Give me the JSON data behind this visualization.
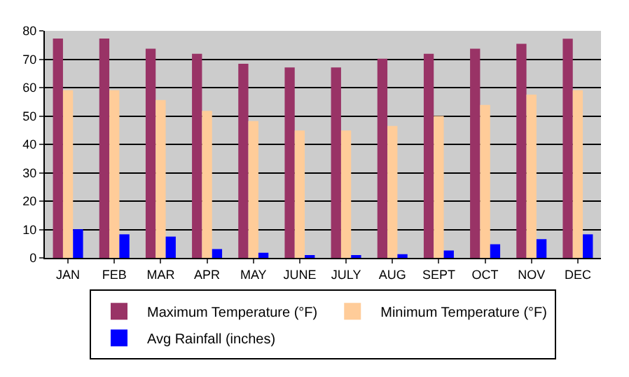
{
  "chart_data": {
    "type": "bar",
    "categories": [
      "JAN",
      "FEB",
      "MAR",
      "APR",
      "MAY",
      "JUNE",
      "JULY",
      "AUG",
      "SEPT",
      "OCT",
      "NOV",
      "DEC"
    ],
    "series": [
      {
        "name": "Maximum Temperature (°F)",
        "color": "#993366",
        "values": [
          77.3,
          77.3,
          73.7,
          71.9,
          68.4,
          67.1,
          67.1,
          70.2,
          71.9,
          73.7,
          75.4,
          77.2
        ]
      },
      {
        "name": "Minimum Temperature (°F)",
        "color": "#ffcc99",
        "values": [
          59.1,
          59.1,
          55.6,
          51.8,
          48.2,
          44.9,
          44.9,
          46.5,
          50,
          53.9,
          57.5,
          59.1
        ]
      },
      {
        "name": "Avg Rainfall (inches)",
        "color": "#0000ff",
        "values": [
          10.1,
          8.3,
          7.5,
          3.1,
          1.8,
          0.9,
          0.9,
          1.3,
          2.6,
          4.8,
          6.6,
          8.3
        ]
      }
    ],
    "ylim": [
      0,
      80
    ],
    "yticks": [
      0,
      10,
      20,
      30,
      40,
      50,
      60,
      70,
      80
    ],
    "grid": "y",
    "legend": "bottom"
  }
}
